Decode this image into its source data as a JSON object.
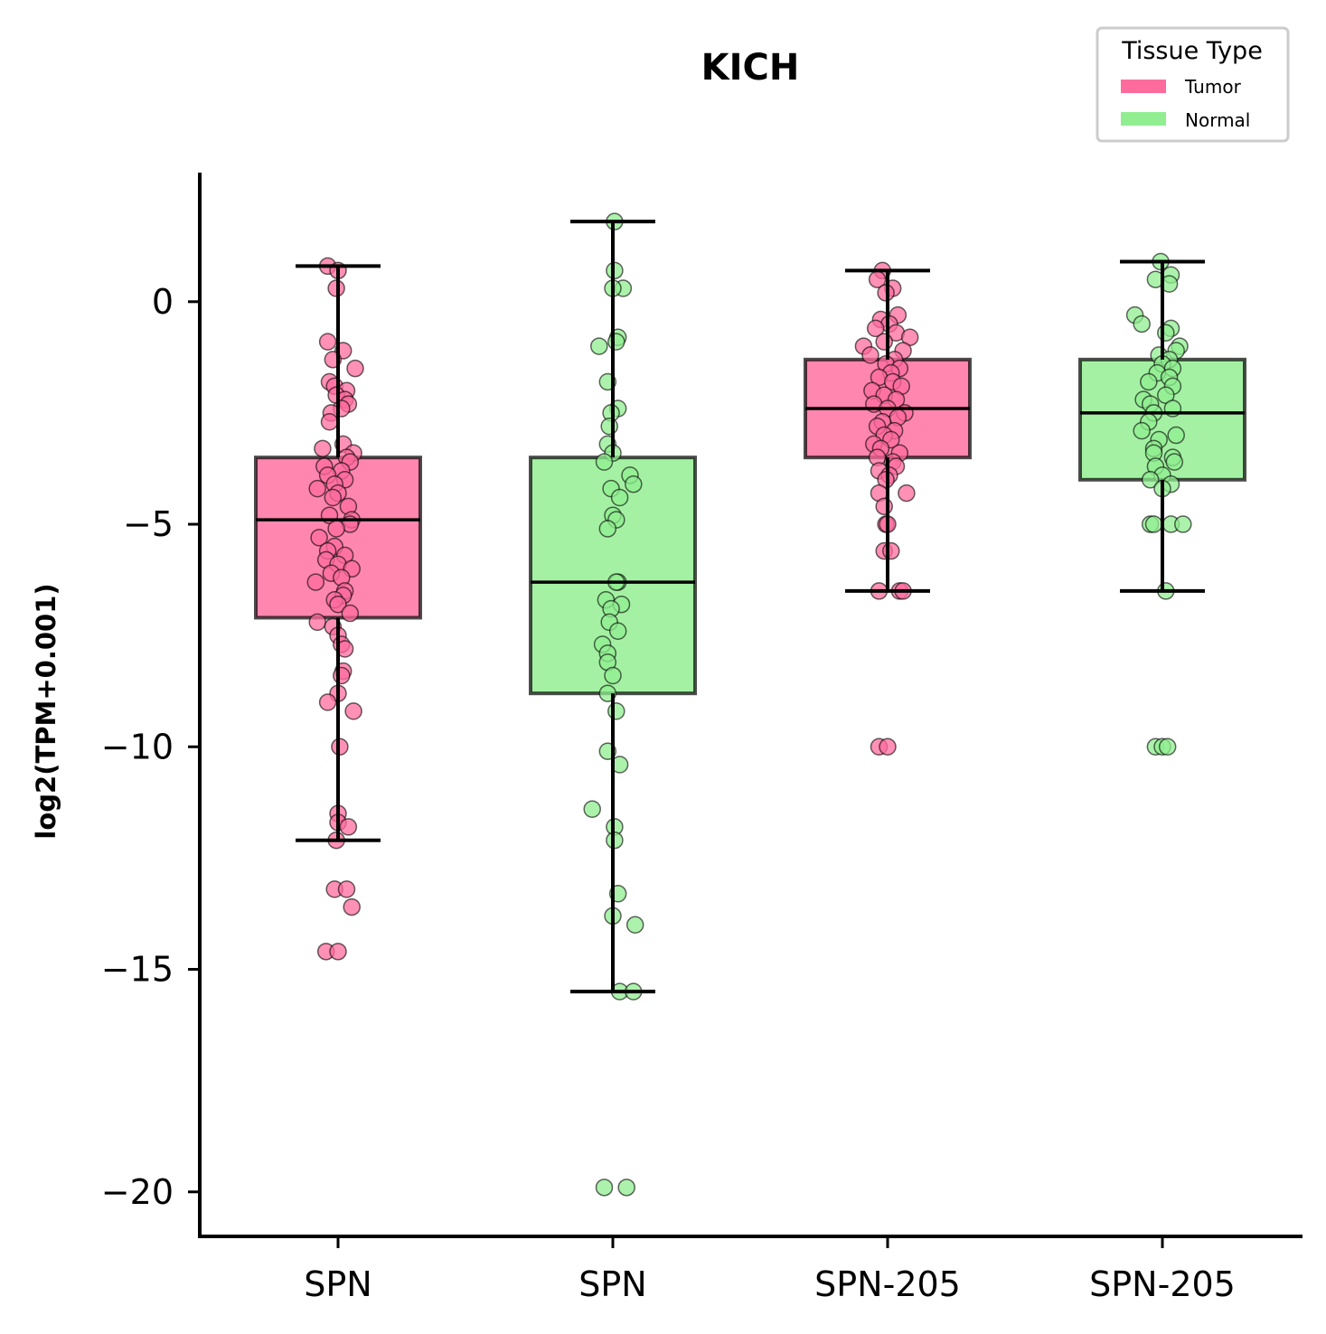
{
  "chart_data": {
    "type": "box",
    "title": "KICH",
    "xlabel": "",
    "ylabel": "log2(TPM+0.001)",
    "ylim": [
      -21,
      2.9
    ],
    "yticks": [
      0,
      -5,
      -10,
      -15,
      -20
    ],
    "ytick_labels": [
      "0",
      "−5",
      "−10",
      "−15",
      "−20"
    ],
    "grid": false,
    "legend": {
      "title": "Tissue Type",
      "placement": "top-right",
      "entries": [
        {
          "label": "Tumor",
          "color": "#FF6B9D"
        },
        {
          "label": "Normal",
          "color": "#90EE90"
        }
      ]
    },
    "categories": [
      "SPN",
      "SPN",
      "SPN-205",
      "SPN-205"
    ],
    "boxes": [
      {
        "category": "SPN",
        "tissue": "Tumor",
        "color": "#FF6B9D",
        "whisker_low": -12.1,
        "q1": -7.1,
        "median": -4.9,
        "q3": -3.5,
        "whisker_high": 0.8,
        "points": [
          0.8,
          0.7,
          0.3,
          -0.9,
          -1.1,
          -1.3,
          -1.5,
          -1.8,
          -1.9,
          -2.0,
          -2.1,
          -2.2,
          -2.3,
          -2.4,
          -2.5,
          -2.7,
          -3.2,
          -3.3,
          -3.4,
          -3.5,
          -3.6,
          -3.7,
          -3.8,
          -3.9,
          -4.0,
          -4.1,
          -4.2,
          -4.3,
          -4.4,
          -4.6,
          -4.8,
          -4.9,
          -5.0,
          -5.1,
          -5.3,
          -5.5,
          -5.6,
          -5.7,
          -5.8,
          -5.9,
          -6.0,
          -6.1,
          -6.2,
          -6.3,
          -6.5,
          -6.6,
          -6.7,
          -6.8,
          -7.0,
          -7.2,
          -7.3,
          -7.5,
          -7.7,
          -7.8,
          -8.3,
          -8.4,
          -8.8,
          -9.0,
          -9.2,
          -10.0,
          -11.5,
          -11.7,
          -11.8,
          -12.1,
          -13.2,
          -13.2,
          -13.6,
          -14.6,
          -14.6
        ],
        "jitter": [
          -0.06,
          0.0,
          -0.01,
          -0.06,
          0.03,
          -0.03,
          0.1,
          -0.05,
          -0.02,
          0.05,
          -0.01,
          0.04,
          0.06,
          0.02,
          -0.04,
          -0.05,
          0.03,
          -0.09,
          0.09,
          0.05,
          0.07,
          -0.08,
          0.02,
          -0.06,
          0.04,
          -0.02,
          -0.12,
          0.0,
          -0.03,
          0.06,
          -0.05,
          0.08,
          0.07,
          -0.01,
          -0.11,
          -0.02,
          -0.06,
          0.04,
          -0.07,
          0.0,
          0.08,
          -0.04,
          0.02,
          -0.13,
          0.04,
          0.03,
          -0.02,
          0.0,
          0.07,
          -0.12,
          -0.03,
          0.0,
          0.02,
          0.04,
          0.03,
          0.02,
          0.0,
          -0.06,
          0.09,
          0.01,
          0.0,
          0.0,
          0.06,
          -0.01,
          -0.02,
          0.05,
          0.08,
          -0.07,
          0.0
        ]
      },
      {
        "category": "SPN",
        "tissue": "Normal",
        "color": "#90EE90",
        "whisker_low": -15.5,
        "q1": -8.8,
        "median": -6.3,
        "q3": -3.5,
        "whisker_high": 1.8,
        "points": [
          1.8,
          0.7,
          0.3,
          0.3,
          -0.8,
          -0.9,
          -1.0,
          -1.8,
          -2.4,
          -2.5,
          -2.8,
          -3.2,
          -3.4,
          -3.6,
          -3.9,
          -4.1,
          -4.2,
          -4.4,
          -4.8,
          -4.9,
          -5.1,
          -6.3,
          -6.3,
          -6.7,
          -6.8,
          -6.9,
          -7.2,
          -7.4,
          -7.7,
          -7.9,
          -8.1,
          -8.4,
          -8.8,
          -9.2,
          -10.1,
          -10.4,
          -11.4,
          -11.8,
          -12.1,
          -13.3,
          -13.8,
          -14.0,
          -15.5,
          -15.5,
          -19.9,
          -19.9
        ],
        "jitter": [
          0.01,
          0.01,
          0.06,
          0.0,
          0.03,
          0.02,
          -0.08,
          -0.03,
          0.03,
          -0.01,
          -0.02,
          -0.03,
          0.0,
          -0.05,
          0.1,
          0.12,
          -0.01,
          0.04,
          0.0,
          0.02,
          -0.03,
          0.03,
          0.02,
          -0.04,
          0.05,
          -0.01,
          -0.02,
          0.03,
          -0.06,
          -0.03,
          -0.03,
          0.0,
          -0.03,
          0.02,
          -0.03,
          0.04,
          -0.12,
          0.01,
          0.01,
          0.03,
          0.0,
          0.13,
          0.04,
          0.12,
          -0.05,
          0.08
        ]
      },
      {
        "category": "SPN-205",
        "tissue": "Tumor",
        "color": "#FF6B9D",
        "whisker_low": -6.5,
        "q1": -3.5,
        "median": -2.4,
        "q3": -1.3,
        "whisker_high": 0.7,
        "points": [
          0.7,
          0.5,
          0.3,
          0.2,
          -0.3,
          -0.4,
          -0.5,
          -0.6,
          -0.7,
          -0.8,
          -0.9,
          -1.0,
          -1.1,
          -1.2,
          -1.3,
          -1.4,
          -1.5,
          -1.6,
          -1.7,
          -1.8,
          -1.9,
          -2.0,
          -2.1,
          -2.2,
          -2.3,
          -2.4,
          -2.5,
          -2.6,
          -2.7,
          -2.8,
          -2.9,
          -3.0,
          -3.1,
          -3.2,
          -3.3,
          -3.4,
          -3.5,
          -3.6,
          -3.7,
          -3.8,
          -3.9,
          -4.0,
          -4.3,
          -4.3,
          -4.6,
          -5.0,
          -5.0,
          -5.6,
          -5.6,
          -6.5,
          -6.5,
          -6.5,
          -10.0,
          -10.0
        ],
        "jitter": [
          -0.03,
          -0.06,
          0.03,
          -0.01,
          0.06,
          -0.04,
          0.01,
          -0.07,
          0.05,
          0.13,
          -0.02,
          -0.14,
          0.09,
          -0.1,
          0.04,
          -0.01,
          0.07,
          0.02,
          -0.05,
          0.03,
          0.08,
          -0.09,
          -0.02,
          0.05,
          -0.08,
          0.0,
          0.1,
          0.06,
          -0.03,
          -0.06,
          0.04,
          -0.02,
          0.02,
          -0.08,
          -0.04,
          0.07,
          -0.06,
          0.03,
          0.05,
          -0.05,
          0.01,
          -0.01,
          -0.05,
          0.11,
          -0.02,
          -0.01,
          0.0,
          -0.02,
          0.02,
          -0.05,
          0.07,
          0.09,
          -0.05,
          0.0
        ]
      },
      {
        "category": "SPN-205",
        "tissue": "Normal",
        "color": "#90EE90",
        "whisker_low": -6.5,
        "q1": -4.0,
        "median": -2.5,
        "q3": -1.3,
        "whisker_high": 0.9,
        "points": [
          0.9,
          0.6,
          0.5,
          0.4,
          -0.3,
          -0.5,
          -0.6,
          -0.7,
          -1.0,
          -1.1,
          -1.2,
          -1.3,
          -1.4,
          -1.5,
          -1.6,
          -1.7,
          -1.8,
          -1.9,
          -2.1,
          -2.2,
          -2.3,
          -2.4,
          -2.5,
          -2.7,
          -2.9,
          -3.0,
          -3.1,
          -3.3,
          -3.4,
          -3.5,
          -3.6,
          -3.7,
          -3.9,
          -4.0,
          -4.1,
          -4.2,
          -5.0,
          -5.0,
          -5.0,
          -5.0,
          -6.5,
          -10.0,
          -10.0,
          -10.0
        ],
        "jitter": [
          -0.01,
          0.05,
          -0.04,
          0.04,
          -0.16,
          -0.12,
          0.05,
          0.02,
          0.1,
          0.08,
          -0.02,
          0.04,
          0.0,
          0.06,
          -0.03,
          0.04,
          -0.08,
          0.06,
          0.02,
          -0.11,
          -0.07,
          0.06,
          -0.05,
          -0.08,
          -0.12,
          0.08,
          -0.02,
          -0.05,
          -0.05,
          0.06,
          0.07,
          -0.04,
          0.0,
          -0.07,
          0.05,
          0.0,
          -0.07,
          -0.05,
          0.05,
          0.12,
          0.02,
          -0.04,
          0.0,
          0.03
        ]
      }
    ]
  }
}
